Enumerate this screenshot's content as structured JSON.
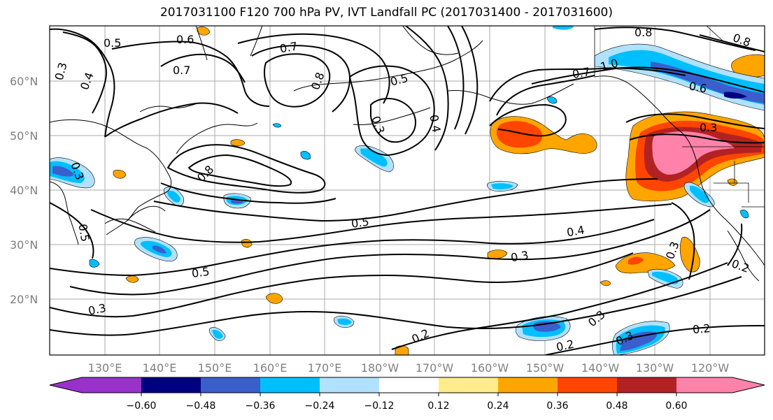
{
  "title": "2017031100 F120 700 hPa PV, IVT Landfall PC (2017031400 - 2017031600)",
  "lat_labels": [
    "20°N",
    "30°N",
    "40°N",
    "50°N",
    "60°N"
  ],
  "lon_labels": [
    "130°E",
    "140°E",
    "150°E",
    "160°E",
    "170°E",
    "180°W",
    "170°W",
    "160°W",
    "150°W",
    "140°W",
    "130°W",
    "120°W"
  ],
  "contour_labels": [
    "0.5",
    "0.6",
    "0.7",
    "0.3",
    "0.4",
    "0.7",
    "0.8",
    "0.5",
    "0.3",
    "0.4",
    "0.8",
    "1.0",
    "0.7",
    "0.6",
    "0.8",
    "0.3",
    "0.8",
    "0.3",
    "0.5",
    "0.5",
    "0.4",
    "0.3",
    "0.5",
    "0.3",
    "0.2",
    "0.3",
    "0.2",
    "0.3",
    "0.2",
    "0.3",
    "0.2"
  ],
  "colorbar": {
    "ticks": [
      "−0.60",
      "−0.48",
      "−0.36",
      "−0.24",
      "−0.12",
      "0.12",
      "0.24",
      "0.36",
      "0.48",
      "0.60"
    ],
    "colors": [
      "#9932cc",
      "#000080",
      "#3a5fcd",
      "#00bfff",
      "#b0e2ff",
      "#ffffff",
      "#ffec8b",
      "#ffa500",
      "#ff4500",
      "#b22222",
      "#ff82ab",
      "#ff82ab"
    ]
  },
  "fill_colors": {
    "neg_light": "#b0e2ff",
    "neg_mid": "#00bfff",
    "neg_dark": "#3a5fcd",
    "neg_darkest": "#000080",
    "pos_light": "#ffec8b",
    "pos_mid": "#ffa500",
    "pos_strong": "#ff4500",
    "pos_dark": "#b22222",
    "pos_max": "#ff82ab"
  }
}
